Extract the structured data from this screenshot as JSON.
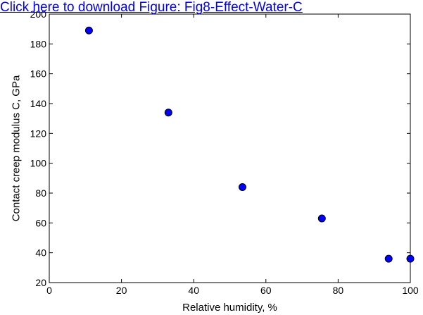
{
  "link": {
    "text": "Click here to download Figure: Fig8-Effect-Water-C"
  },
  "colors": {
    "marker_fill": "#0000ff",
    "marker_edge": "#000000",
    "axis": "#000000",
    "link": "#0000ee"
  },
  "chart_data": {
    "type": "scatter",
    "xlabel": "Relative humidity, %",
    "ylabel": "Contact creep modulus C, GPa",
    "xlim": [
      0,
      100
    ],
    "ylim": [
      20,
      200
    ],
    "xticks": [
      0,
      20,
      40,
      60,
      80,
      100
    ],
    "yticks": [
      20,
      40,
      60,
      80,
      100,
      120,
      140,
      160,
      180,
      200
    ],
    "grid": false,
    "series": [
      {
        "x": [
          11,
          33,
          53.5,
          75.5,
          94,
          100
        ],
        "y": [
          189,
          134,
          84,
          63,
          36,
          36
        ]
      }
    ]
  }
}
